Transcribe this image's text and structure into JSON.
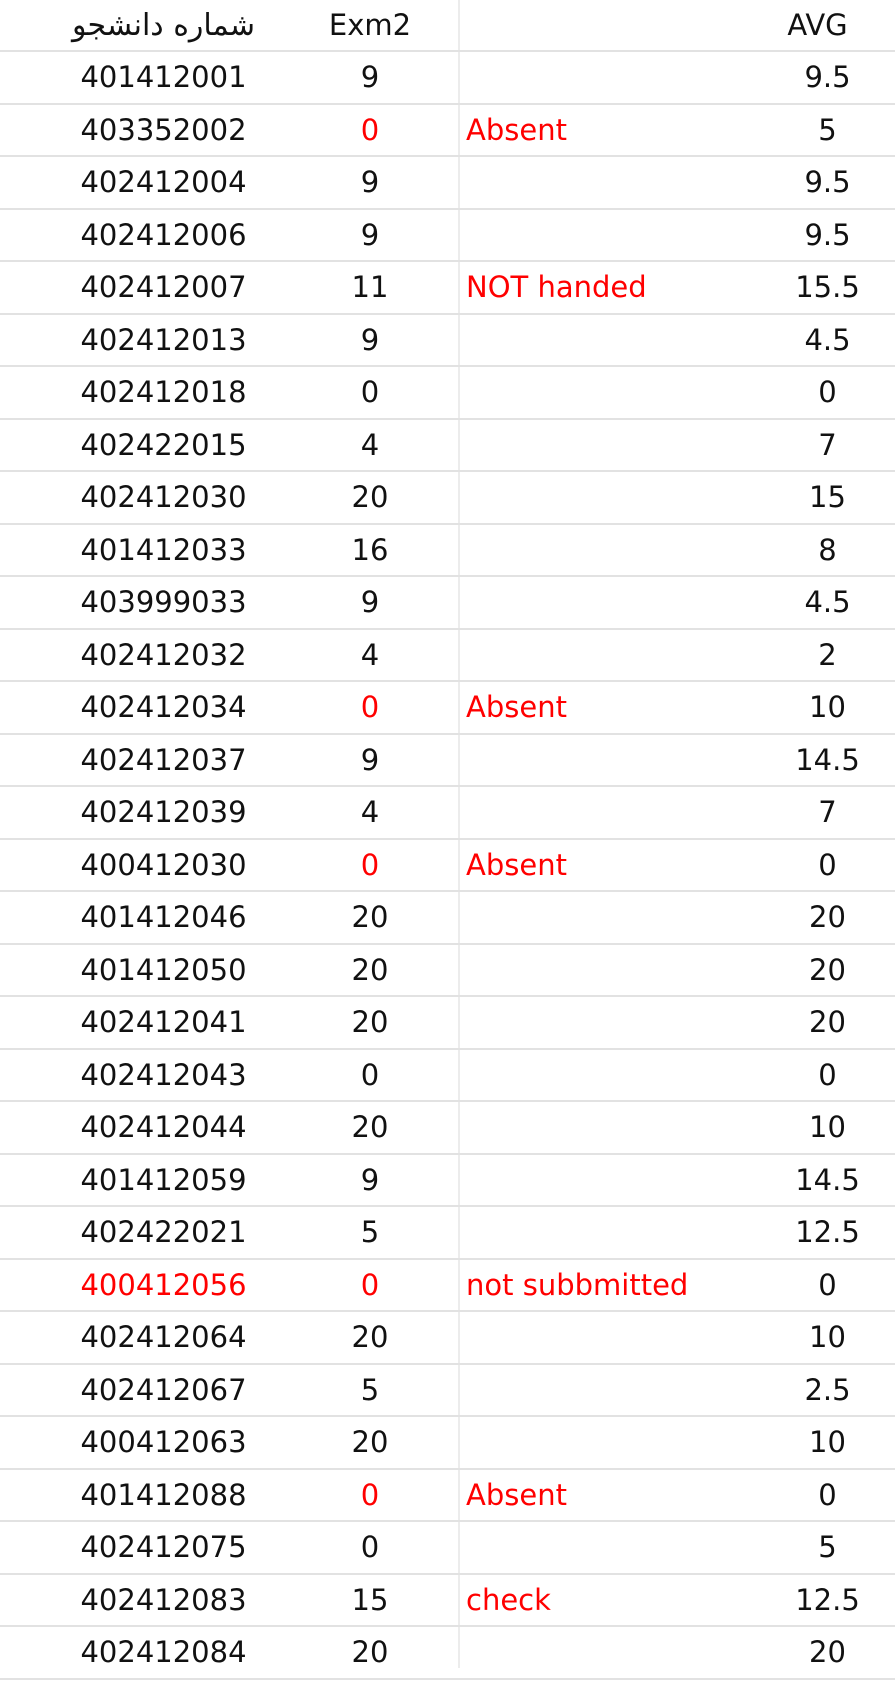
{
  "headers": {
    "student_id": "شماره دانشجو",
    "exam2": "Exm2",
    "note": "",
    "avg": "AVG"
  },
  "colors": {
    "highlight": "#ff0000",
    "text": "#111111",
    "grid": "#e2e2e2"
  },
  "rows": [
    {
      "id": "401412001",
      "exm2": "9",
      "note": "",
      "avg": "9.5"
    },
    {
      "id": "403352002",
      "exm2": "0",
      "note": "Absent",
      "avg": "5"
    },
    {
      "id": "402412004",
      "exm2": "9",
      "note": "",
      "avg": "9.5"
    },
    {
      "id": "402412006",
      "exm2": "9",
      "note": "",
      "avg": "9.5"
    },
    {
      "id": "402412007",
      "exm2": "11",
      "note": "NOT handed",
      "avg": "15.5"
    },
    {
      "id": "402412013",
      "exm2": "9",
      "note": "",
      "avg": "4.5"
    },
    {
      "id": "402412018",
      "exm2": "0",
      "note": "",
      "avg": "0"
    },
    {
      "id": "402422015",
      "exm2": "4",
      "note": "",
      "avg": "7"
    },
    {
      "id": "402412030",
      "exm2": "20",
      "note": "",
      "avg": "15"
    },
    {
      "id": "401412033",
      "exm2": "16",
      "note": "",
      "avg": "8"
    },
    {
      "id": "403999033",
      "exm2": "9",
      "note": "",
      "avg": "4.5"
    },
    {
      "id": "402412032",
      "exm2": "4",
      "note": "",
      "avg": "2"
    },
    {
      "id": "402412034",
      "exm2": "0",
      "note": "Absent",
      "avg": "10"
    },
    {
      "id": "402412037",
      "exm2": "9",
      "note": "",
      "avg": "14.5"
    },
    {
      "id": "402412039",
      "exm2": "4",
      "note": "",
      "avg": "7"
    },
    {
      "id": "400412030",
      "exm2": "0",
      "note": "Absent",
      "avg": "0"
    },
    {
      "id": "401412046",
      "exm2": "20",
      "note": "",
      "avg": "20"
    },
    {
      "id": "401412050",
      "exm2": "20",
      "note": "",
      "avg": "20"
    },
    {
      "id": "402412041",
      "exm2": "20",
      "note": "",
      "avg": "20"
    },
    {
      "id": "402412043",
      "exm2": "0",
      "note": "",
      "avg": "0"
    },
    {
      "id": "402412044",
      "exm2": "20",
      "note": "",
      "avg": "10"
    },
    {
      "id": "401412059",
      "exm2": "9",
      "note": "",
      "avg": "14.5"
    },
    {
      "id": "402422021",
      "exm2": "5",
      "note": "",
      "avg": "12.5"
    },
    {
      "id": "400412056",
      "exm2": "0",
      "note": "not subbmitted",
      "avg": "0"
    },
    {
      "id": "402412064",
      "exm2": "20",
      "note": "",
      "avg": "10"
    },
    {
      "id": "402412067",
      "exm2": "5",
      "note": "",
      "avg": "2.5"
    },
    {
      "id": "400412063",
      "exm2": "20",
      "note": "",
      "avg": "10"
    },
    {
      "id": "401412088",
      "exm2": "0",
      "note": "Absent",
      "avg": "0"
    },
    {
      "id": "402412075",
      "exm2": "0",
      "note": "",
      "avg": "5"
    },
    {
      "id": "402412083",
      "exm2": "15",
      "note": "check",
      "avg": "12.5"
    },
    {
      "id": "402412084",
      "exm2": "20",
      "note": "",
      "avg": "20"
    }
  ],
  "red_cells": {
    "id": [
      23
    ],
    "exm2": [
      1,
      12,
      15,
      23,
      27
    ],
    "note": [
      1,
      4,
      12,
      15,
      23,
      27,
      29
    ]
  }
}
